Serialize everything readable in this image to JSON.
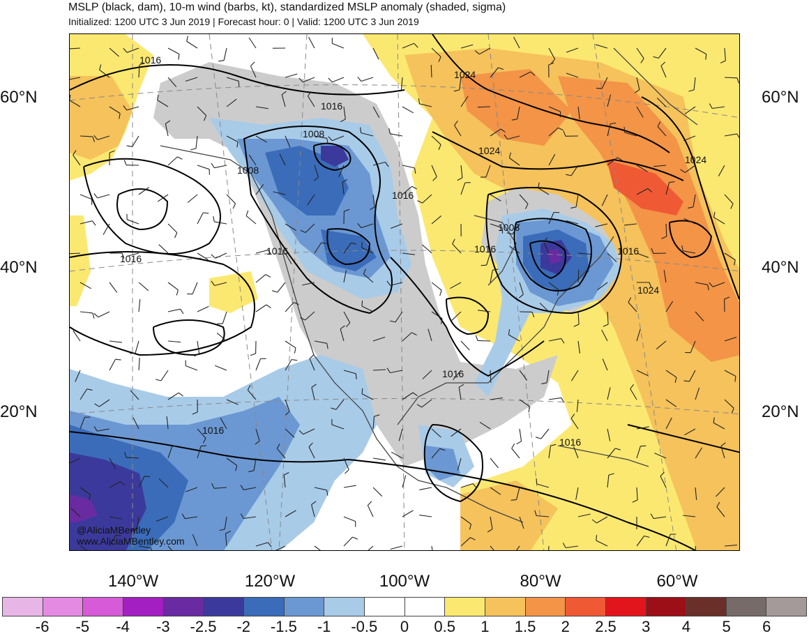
{
  "header": {
    "title": "MSLP (black, dam), 10-m wind (barbs, kt), standardized MSLP anomaly (shaded, sigma)",
    "subtitle": "Initialized: 1200 UTC 3 Jun 2019 | Forecast hour: 0 | Valid: 1200 UTC 3 Jun 2019"
  },
  "axes": {
    "lat_labels": [
      "60°N",
      "40°N",
      "20°N"
    ],
    "lon_labels": [
      "140°W",
      "120°W",
      "100°W",
      "80°W",
      "60°W"
    ]
  },
  "credits": {
    "twitter": "@AliciaMBentley",
    "website": "www.AliciaMBentley.com"
  },
  "isobar_labels": [
    "1016",
    "1016",
    "1008",
    "1008",
    "1016",
    "1016",
    "1016",
    "1016",
    "1008",
    "1016",
    "1016",
    "1024",
    "1024",
    "1024",
    "1024",
    "1016",
    "1016"
  ],
  "colorbar": {
    "labels": [
      "-6",
      "-5",
      "-4",
      "-3",
      "-2.5",
      "-2",
      "-1.5",
      "-1",
      "-0.5",
      "0",
      "0.5",
      "1",
      "1.5",
      "2",
      "2.5",
      "3",
      "4",
      "5",
      "6"
    ],
    "colors": [
      "#e8b6e6",
      "#e58ae3",
      "#d75ad8",
      "#a31fc1",
      "#6a2ba2",
      "#3b3a9c",
      "#3a6cb9",
      "#6b98d3",
      "#a8cbe8",
      "#ffffff",
      "#ffffff",
      "#fbe871",
      "#f5c25b",
      "#f39447",
      "#ef5a35",
      "#e3151c",
      "#9d0f16",
      "#6b2f2a",
      "#766b68",
      "#a49a99"
    ]
  }
}
